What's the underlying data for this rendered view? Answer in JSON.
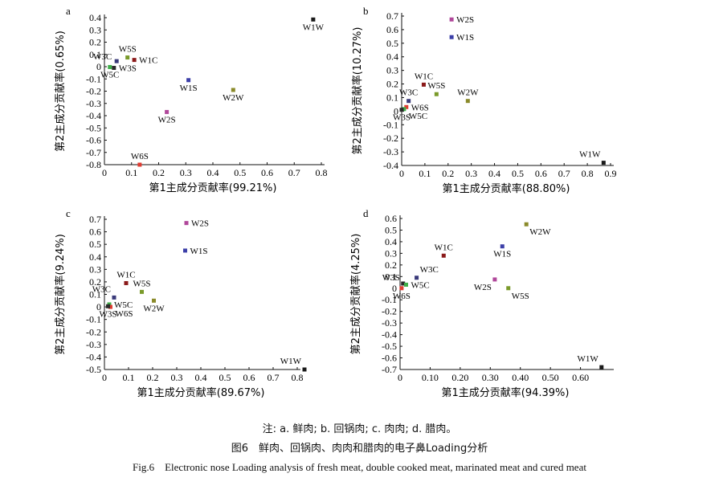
{
  "caption": {
    "note": "注: a. 鲜肉; b. 回锅肉; c. 肉肉; d. 腊肉。",
    "title": "图6　鲜肉、回锅肉、肉肉和腊肉的电子鼻Loading分析",
    "english": "Fig.6　Electronic nose Loading analysis of fresh meat, double cooked meat, marinated meat and cured meat"
  },
  "colors": {
    "W1C": "#8b1a1a",
    "W5S": "#7a9a2a",
    "W3C": "#3a3a7a",
    "W6S": "#e03c31",
    "W5C": "#3fae49",
    "W1S": "#3c3fa8",
    "W1W": "#1a1a1a",
    "W2S": "#b0479a",
    "W3S": "#2a2a2a",
    "W2W": "#8a8a2a"
  },
  "chart_data": [
    {
      "type": "scatter",
      "panel_label": "a",
      "xlabel": "第1主成分贡献率(99.21%)",
      "ylabel": "第2主成分贡献率(0.65%)",
      "xlim": [
        0,
        0.8
      ],
      "ylim": [
        -0.8,
        0.4
      ],
      "xticks": [
        "0",
        "0.1",
        "0.2",
        "0.3",
        "0.4",
        "0.5",
        "0.6",
        "0.7",
        "0.8"
      ],
      "xtick_values": [
        0,
        0.1,
        0.2,
        0.3,
        0.4,
        0.5,
        0.6,
        0.7,
        0.8
      ],
      "yticks": [
        "0.4",
        "0.3",
        "0.2",
        "0.1",
        "0",
        "-0.1",
        "-0.2",
        "-0.3",
        "-0.4",
        "-0.5",
        "-0.6",
        "-0.7",
        "-0.8"
      ],
      "ytick_values": [
        0.4,
        0.3,
        0.2,
        0.1,
        0,
        -0.1,
        -0.2,
        -0.3,
        -0.4,
        -0.5,
        -0.6,
        -0.7,
        -0.8
      ],
      "points": [
        {
          "name": "W1W",
          "x": 0.77,
          "y": 0.385,
          "label_pos": "below"
        },
        {
          "name": "W5S",
          "x": 0.085,
          "y": 0.075,
          "label_pos": "above"
        },
        {
          "name": "W3C",
          "x": 0.045,
          "y": 0.045,
          "label_pos": "left"
        },
        {
          "name": "W1C",
          "x": 0.11,
          "y": 0.055,
          "label_pos": "right"
        },
        {
          "name": "W5C",
          "x": 0.02,
          "y": -0.003,
          "label_pos": "below"
        },
        {
          "name": "W3S",
          "x": 0.035,
          "y": -0.01,
          "label_pos": "right"
        },
        {
          "name": "W1S",
          "x": 0.31,
          "y": -0.11,
          "label_pos": "below"
        },
        {
          "name": "W2W",
          "x": 0.475,
          "y": -0.19,
          "label_pos": "below"
        },
        {
          "name": "W2S",
          "x": 0.23,
          "y": -0.37,
          "label_pos": "below"
        },
        {
          "name": "W6S",
          "x": 0.13,
          "y": -0.8,
          "label_pos": "above"
        }
      ]
    },
    {
      "type": "scatter",
      "panel_label": "b",
      "xlabel": "第1主成分贡献率(88.80%)",
      "ylabel": "第2主成分贡献率(10.27%)",
      "xlim": [
        0,
        0.9
      ],
      "ylim": [
        -0.4,
        0.7
      ],
      "xticks": [
        "0",
        "0.1",
        "0.2",
        "0.3",
        "0.4",
        "0.5",
        "0.6",
        "0.7",
        "0.8",
        "0.9"
      ],
      "xtick_values": [
        0,
        0.1,
        0.2,
        0.3,
        0.4,
        0.5,
        0.6,
        0.7,
        0.8,
        0.9
      ],
      "yticks": [
        "0.7",
        "0.6",
        "0.5",
        "0.4",
        "0.3",
        "0.2",
        "0.1",
        "0",
        "-0.1",
        "-0.2",
        "-0.3",
        "-0.4"
      ],
      "ytick_values": [
        0.7,
        0.6,
        0.5,
        0.4,
        0.3,
        0.2,
        0.1,
        0,
        -0.1,
        -0.2,
        -0.3,
        -0.4
      ],
      "points": [
        {
          "name": "W2S",
          "x": 0.215,
          "y": 0.675,
          "label_pos": "right"
        },
        {
          "name": "W1S",
          "x": 0.215,
          "y": 0.545,
          "label_pos": "right"
        },
        {
          "name": "W1C",
          "x": 0.095,
          "y": 0.195,
          "label_pos": "above"
        },
        {
          "name": "W5S",
          "x": 0.15,
          "y": 0.125,
          "label_pos": "above"
        },
        {
          "name": "W2W",
          "x": 0.285,
          "y": 0.075,
          "label_pos": "above"
        },
        {
          "name": "W3C",
          "x": 0.03,
          "y": 0.075,
          "label_pos": "above"
        },
        {
          "name": "W6S",
          "x": 0.02,
          "y": 0.03,
          "label_pos": "right"
        },
        {
          "name": "W5C",
          "x": 0.01,
          "y": 0.015,
          "label_pos": "right-below"
        },
        {
          "name": "W3S",
          "x": 0.0,
          "y": 0.01,
          "label_pos": "below"
        },
        {
          "name": "W1W",
          "x": 0.87,
          "y": -0.38,
          "label_pos": "above-left"
        }
      ]
    },
    {
      "type": "scatter",
      "panel_label": "c",
      "xlabel": "第1主成分贡献率(89.67%)",
      "ylabel": "第2主成分贡献率(9.24%)",
      "xlim": [
        0,
        0.8
      ],
      "ylim": [
        -0.5,
        0.7
      ],
      "xticks": [
        "0",
        "0.1",
        "0.2",
        "0.3",
        "0.4",
        "0.5",
        "0.6",
        "0.7",
        "0.8"
      ],
      "xtick_values": [
        0,
        0.1,
        0.2,
        0.3,
        0.4,
        0.5,
        0.6,
        0.7,
        0.8
      ],
      "yticks": [
        "0.7",
        "0.6",
        "0.5",
        "0.4",
        "0.3",
        "0.2",
        "0.1",
        "0",
        "-0.1",
        "-0.2",
        "-0.3",
        "-0.4",
        "-0.5"
      ],
      "ytick_values": [
        0.7,
        0.6,
        0.5,
        0.4,
        0.3,
        0.2,
        0.1,
        0,
        -0.1,
        -0.2,
        -0.3,
        -0.4,
        -0.5
      ],
      "points": [
        {
          "name": "W2S",
          "x": 0.34,
          "y": 0.67,
          "label_pos": "right"
        },
        {
          "name": "W1S",
          "x": 0.335,
          "y": 0.45,
          "label_pos": "right"
        },
        {
          "name": "W1C",
          "x": 0.09,
          "y": 0.19,
          "label_pos": "above"
        },
        {
          "name": "W5S",
          "x": 0.155,
          "y": 0.12,
          "label_pos": "above"
        },
        {
          "name": "W3C",
          "x": 0.04,
          "y": 0.075,
          "label_pos": "above-left"
        },
        {
          "name": "W2W",
          "x": 0.205,
          "y": 0.05,
          "label_pos": "below"
        },
        {
          "name": "W5C",
          "x": 0.02,
          "y": 0.02,
          "label_pos": "right"
        },
        {
          "name": "W6S",
          "x": 0.025,
          "y": 0.0,
          "label_pos": "right-below"
        },
        {
          "name": "W3S",
          "x": 0.015,
          "y": 0.005,
          "label_pos": "below"
        },
        {
          "name": "W1W",
          "x": 0.83,
          "y": -0.5,
          "label_pos": "above-left"
        }
      ]
    },
    {
      "type": "scatter",
      "panel_label": "d",
      "xlabel": "第1主成分贡献率(94.39%)",
      "ylabel": "第2主成分贡献率(4.25%)",
      "xlim": [
        0,
        0.7
      ],
      "ylim": [
        -0.7,
        0.6
      ],
      "xticks": [
        "0",
        "0.10",
        "0.20",
        "0.30",
        "0.40",
        "0.50",
        "0.60"
      ],
      "xtick_values": [
        0,
        0.1,
        0.2,
        0.3,
        0.4,
        0.5,
        0.6
      ],
      "yticks": [
        "0.6",
        "0.5",
        "0.4",
        "0.3",
        "0.2",
        "0.1",
        "0",
        "-0.1",
        "-0.2",
        "-0.3",
        "-0.4",
        "-0.5",
        "-0.6",
        "-0.7"
      ],
      "ytick_values": [
        0.6,
        0.5,
        0.4,
        0.3,
        0.2,
        0.1,
        0,
        -0.1,
        -0.2,
        -0.3,
        -0.4,
        -0.5,
        -0.6,
        -0.7
      ],
      "points": [
        {
          "name": "W2W",
          "x": 0.42,
          "y": 0.55,
          "label_pos": "below-right"
        },
        {
          "name": "W1S",
          "x": 0.34,
          "y": 0.36,
          "label_pos": "below"
        },
        {
          "name": "W1C",
          "x": 0.145,
          "y": 0.28,
          "label_pos": "above"
        },
        {
          "name": "W3C",
          "x": 0.055,
          "y": 0.09,
          "label_pos": "above-right"
        },
        {
          "name": "W3S",
          "x": 0.01,
          "y": 0.04,
          "label_pos": "left-above"
        },
        {
          "name": "W5C",
          "x": 0.02,
          "y": 0.03,
          "label_pos": "right"
        },
        {
          "name": "W6S",
          "x": 0.005,
          "y": 0.0,
          "label_pos": "below"
        },
        {
          "name": "W2S",
          "x": 0.315,
          "y": 0.075,
          "label_pos": "below-left"
        },
        {
          "name": "W5S",
          "x": 0.36,
          "y": 0.0,
          "label_pos": "below-right"
        },
        {
          "name": "W1W",
          "x": 0.67,
          "y": -0.68,
          "label_pos": "above-left"
        }
      ]
    }
  ]
}
